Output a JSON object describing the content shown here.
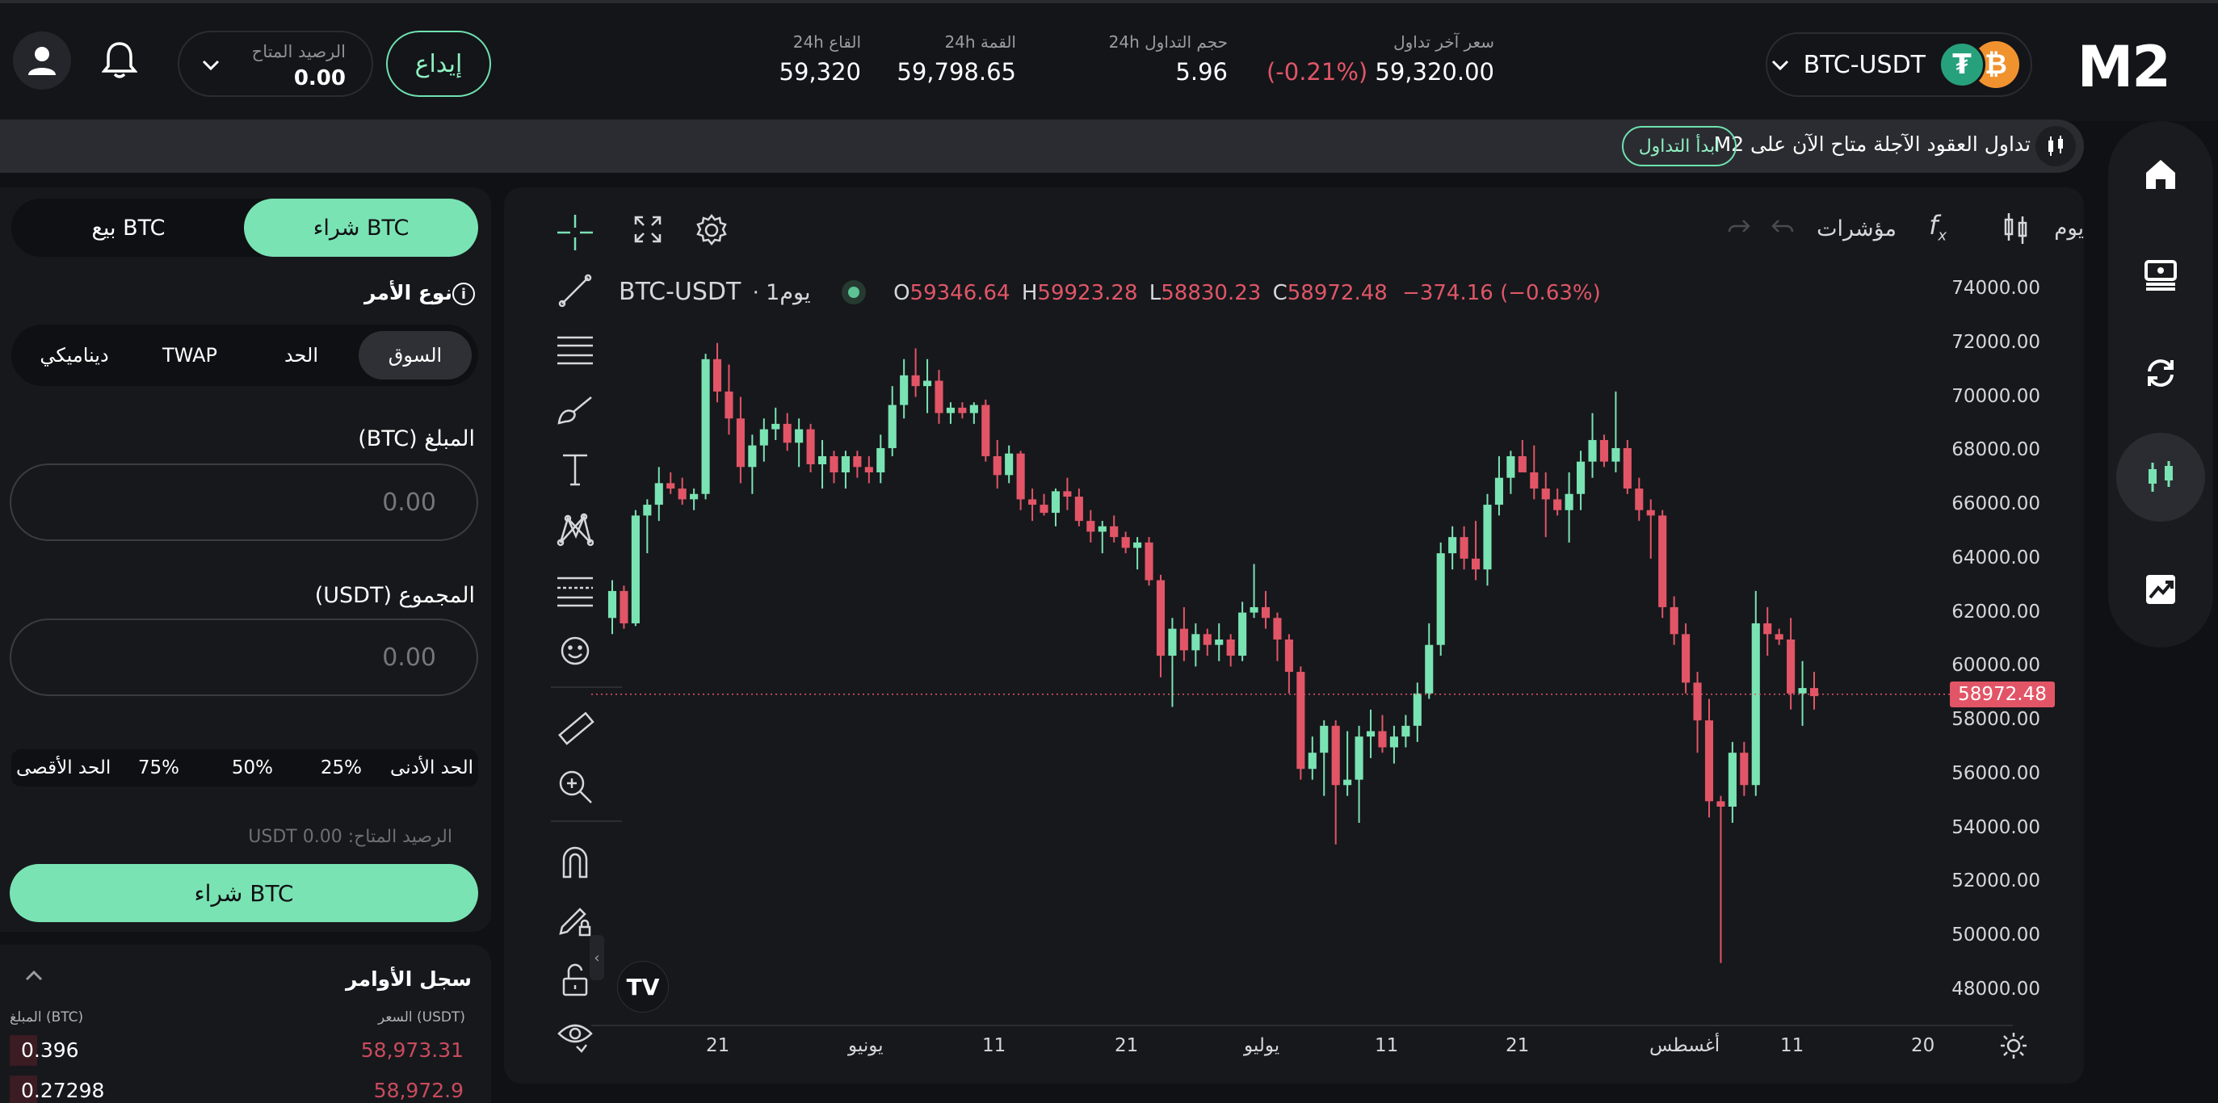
{
  "header": {
    "logo": "M2",
    "pair": "BTC-USDT",
    "coins": {
      "base": "₿",
      "quote": "₮"
    },
    "last_price_label": "سعر آخر تداول",
    "last_price": "59,320.00",
    "last_change": "(-0.21%)",
    "volume_label": "حجم التداول 24h",
    "volume": "5.96",
    "high_label": "القمة 24h",
    "high": "59,798.65",
    "low_label": "القاع 24h",
    "low": "59,320",
    "deposit_label": "إيداع",
    "balance_label": "الرصيد المتاح",
    "balance_value": "0.00"
  },
  "announcement": {
    "text": "تداول العقود الآجلة متاح الآن على M2",
    "button": "ابدأ التداول"
  },
  "nav": {
    "items": [
      "home-icon",
      "wallet-icon",
      "swap-icon",
      "trade-icon",
      "chart-up-icon"
    ],
    "active": 3
  },
  "order_panel": {
    "buy_tab": "شراء BTC",
    "sell_tab": "بيع BTC",
    "order_type_label": "نوع الأمر",
    "order_types": [
      "السوق",
      "الحد",
      "TWAP",
      "ديناميكي"
    ],
    "amount_label": "المبلغ (BTC)",
    "amount_placeholder": "0.00",
    "total_label": "المجموع (USDT)",
    "total_placeholder": "0.00",
    "percent_min": "الحد الأدنى",
    "percents": [
      "25%",
      "50%",
      "75%"
    ],
    "percent_max": "الحد الأقصى",
    "available": "الرصيد المتاح: 0.00 USDT",
    "submit": "شراء BTC"
  },
  "order_book": {
    "title": "سجل الأوامر",
    "price_header": "السعر (USDT)",
    "amount_header": "المبلغ (BTC)",
    "rows": [
      {
        "price": "58,973.31",
        "amount": "0.396"
      },
      {
        "price": "58,972.9",
        "amount": "0.27298"
      }
    ]
  },
  "chart_toolbar": {
    "interval": "يوم",
    "indicators": "مؤشرات"
  },
  "chart_legend": {
    "symbol": "BTC-USDT",
    "interval": "يوم1",
    "o_label": "O",
    "o": "59346.64",
    "h_label": "H",
    "h": "59923.28",
    "l_label": "L",
    "l": "58830.23",
    "c_label": "C",
    "c": "58972.48",
    "change": "−374.16 (−0.63%)"
  },
  "chart_data": {
    "type": "candlestick",
    "y_ticks": [
      "74000.00",
      "72000.00",
      "70000.00",
      "68000.00",
      "66000.00",
      "64000.00",
      "62000.00",
      "60000.00",
      "58000.00",
      "56000.00",
      "54000.00",
      "52000.00",
      "50000.00",
      "48000.00"
    ],
    "ylim": [
      47000,
      75000
    ],
    "x_ticks": [
      "21",
      "يونيو",
      "11",
      "21",
      "يوليو",
      "11",
      "21",
      "أغسطس",
      "11",
      "20"
    ],
    "last_price": "58972.48",
    "colors": {
      "up": "#7ae3b3",
      "down": "#e25566"
    },
    "candles": [
      [
        61800,
        63200,
        61200,
        62800
      ],
      [
        62800,
        63000,
        61400,
        61600
      ],
      [
        61600,
        65800,
        61500,
        65600
      ],
      [
        65600,
        66200,
        64200,
        66000
      ],
      [
        66000,
        67400,
        65400,
        66800
      ],
      [
        66800,
        67200,
        66400,
        66600
      ],
      [
        66600,
        67000,
        66000,
        66200
      ],
      [
        66200,
        66600,
        65800,
        66400
      ],
      [
        66400,
        71600,
        66200,
        71400
      ],
      [
        71400,
        72000,
        69800,
        70200
      ],
      [
        70200,
        71200,
        68600,
        69200
      ],
      [
        69200,
        70000,
        66800,
        67400
      ],
      [
        67400,
        68600,
        66400,
        68200
      ],
      [
        68200,
        69200,
        67600,
        68800
      ],
      [
        68800,
        69600,
        68400,
        69000
      ],
      [
        69000,
        69400,
        68000,
        68300
      ],
      [
        68300,
        69200,
        67400,
        68800
      ],
      [
        68800,
        69000,
        67200,
        67500
      ],
      [
        67500,
        68400,
        66600,
        67800
      ],
      [
        67800,
        68000,
        66800,
        67200
      ],
      [
        67200,
        68000,
        66600,
        67800
      ],
      [
        67800,
        68000,
        67000,
        67400
      ],
      [
        67400,
        67800,
        66800,
        67200
      ],
      [
        67200,
        68600,
        66800,
        68100
      ],
      [
        68100,
        70400,
        67800,
        69700
      ],
      [
        69700,
        71400,
        69200,
        70800
      ],
      [
        70800,
        71800,
        70000,
        70400
      ],
      [
        70400,
        71400,
        69400,
        70600
      ],
      [
        70600,
        71000,
        69000,
        69400
      ],
      [
        69400,
        69800,
        69000,
        69600
      ],
      [
        69600,
        69800,
        69200,
        69400
      ],
      [
        69400,
        69800,
        69000,
        69700
      ],
      [
        69700,
        69900,
        67600,
        67800
      ],
      [
        67800,
        68400,
        66600,
        67100
      ],
      [
        67100,
        68200,
        66800,
        67900
      ],
      [
        67900,
        68000,
        65800,
        66200
      ],
      [
        66200,
        66600,
        65400,
        66000
      ],
      [
        66000,
        66400,
        65600,
        65700
      ],
      [
        65700,
        66600,
        65200,
        66500
      ],
      [
        66500,
        67000,
        65800,
        66300
      ],
      [
        66300,
        66600,
        65200,
        65400
      ],
      [
        65400,
        65800,
        64600,
        65000
      ],
      [
        65000,
        65400,
        64200,
        65200
      ],
      [
        65200,
        65600,
        64600,
        64800
      ],
      [
        64800,
        65000,
        64200,
        64400
      ],
      [
        64400,
        64800,
        63600,
        64600
      ],
      [
        64600,
        64800,
        63000,
        63200
      ],
      [
        63200,
        63400,
        59600,
        60400
      ],
      [
        60400,
        61800,
        58500,
        61400
      ],
      [
        61400,
        62200,
        60200,
        60600
      ],
      [
        60600,
        61600,
        60000,
        61200
      ],
      [
        61200,
        61400,
        60400,
        60800
      ],
      [
        60800,
        61600,
        60200,
        61000
      ],
      [
        61000,
        61200,
        60000,
        60400
      ],
      [
        60400,
        62400,
        60200,
        62000
      ],
      [
        62000,
        63800,
        61800,
        62200
      ],
      [
        62200,
        62800,
        61400,
        61800
      ],
      [
        61800,
        62000,
        60200,
        61000
      ],
      [
        61000,
        61200,
        59000,
        59800
      ],
      [
        59800,
        60000,
        55800,
        56200
      ],
      [
        56200,
        57400,
        55800,
        56800
      ],
      [
        56800,
        58000,
        55200,
        57800
      ],
      [
        57800,
        58000,
        53400,
        55600
      ],
      [
        55600,
        57600,
        55200,
        55800
      ],
      [
        55800,
        57800,
        54200,
        57400
      ],
      [
        57400,
        58400,
        56600,
        57600
      ],
      [
        57600,
        58200,
        56800,
        57000
      ],
      [
        57000,
        57800,
        56400,
        57400
      ],
      [
        57400,
        58200,
        57000,
        57800
      ],
      [
        57800,
        59400,
        57200,
        59000
      ],
      [
        59000,
        61600,
        58800,
        60800
      ],
      [
        60800,
        64600,
        60400,
        64200
      ],
      [
        64200,
        65200,
        63600,
        64800
      ],
      [
        64800,
        65200,
        63600,
        64000
      ],
      [
        64000,
        65400,
        63200,
        63600
      ],
      [
        63600,
        66400,
        63000,
        66000
      ],
      [
        66000,
        67800,
        65600,
        67000
      ],
      [
        67000,
        68000,
        66400,
        67800
      ],
      [
        67800,
        68400,
        67200,
        67200
      ],
      [
        67200,
        68200,
        66200,
        66600
      ],
      [
        66600,
        67200,
        64800,
        66200
      ],
      [
        66200,
        66600,
        65600,
        65800
      ],
      [
        65800,
        67200,
        64600,
        66400
      ],
      [
        66400,
        68000,
        65800,
        67600
      ],
      [
        67600,
        69400,
        67000,
        68400
      ],
      [
        68400,
        68600,
        67400,
        67600
      ],
      [
        67600,
        70200,
        67200,
        68100
      ],
      [
        68100,
        68400,
        66400,
        66600
      ],
      [
        66600,
        67000,
        65400,
        65800
      ],
      [
        65800,
        66200,
        64000,
        65600
      ],
      [
        65600,
        65800,
        61800,
        62200
      ],
      [
        62200,
        62600,
        60800,
        61200
      ],
      [
        61200,
        61600,
        59000,
        59400
      ],
      [
        59400,
        59800,
        56800,
        58000
      ],
      [
        58000,
        58800,
        54400,
        55000
      ],
      [
        55000,
        55200,
        49000,
        54800
      ],
      [
        54800,
        57200,
        54200,
        56800
      ],
      [
        56800,
        57200,
        55200,
        55600
      ],
      [
        55600,
        62800,
        55200,
        61600
      ],
      [
        61600,
        62200,
        60400,
        61200
      ],
      [
        61200,
        61400,
        60800,
        61000
      ],
      [
        61000,
        61800,
        58400,
        59000
      ],
      [
        59000,
        60200,
        57800,
        59200
      ],
      [
        59200,
        59800,
        58400,
        58900
      ]
    ]
  }
}
